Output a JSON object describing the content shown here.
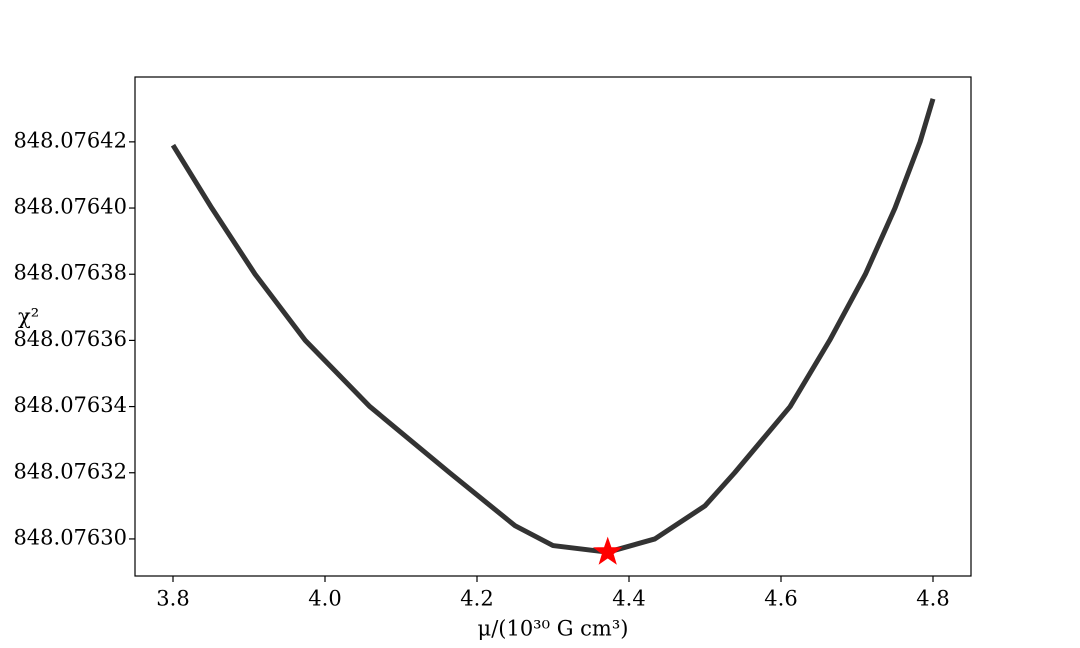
{
  "chart_data": {
    "type": "line",
    "xlabel": "μ/(10³⁰ G cm³)",
    "ylabel": "χ²",
    "x": [
      3.8,
      3.851,
      3.908,
      3.974,
      4.059,
      4.164,
      4.25,
      4.3,
      4.372,
      4.434,
      4.5,
      4.539,
      4.612,
      4.664,
      4.711,
      4.75,
      4.783,
      4.8
    ],
    "values": [
      848.076419,
      848.0764,
      848.07638,
      848.07636,
      848.07634,
      848.07632,
      848.076304,
      848.076298,
      848.076296,
      848.0763,
      848.07631,
      848.07632,
      848.07634,
      848.07636,
      848.07638,
      848.0764,
      848.07642,
      848.076433
    ],
    "color": "#333333",
    "marker": {
      "x": [
        4.372
      ],
      "values": [
        848.076296
      ],
      "color": "#ff0000"
    },
    "xlim": [
      3.75,
      4.85
    ],
    "ylim": [
      848.0762888,
      848.0764396
    ],
    "xticks": [
      3.8,
      {
        "value": 4.0,
        "label": "4.0"
      },
      4.2,
      4.4,
      4.6,
      4.8
    ],
    "yticks": [
      {
        "value": 848.0763,
        "label": "848.07630"
      },
      848.07632,
      848.07634,
      848.07636,
      848.07638,
      {
        "value": 848.0764,
        "label": "848.07640"
      },
      848.07642
    ],
    "grid": false
  }
}
